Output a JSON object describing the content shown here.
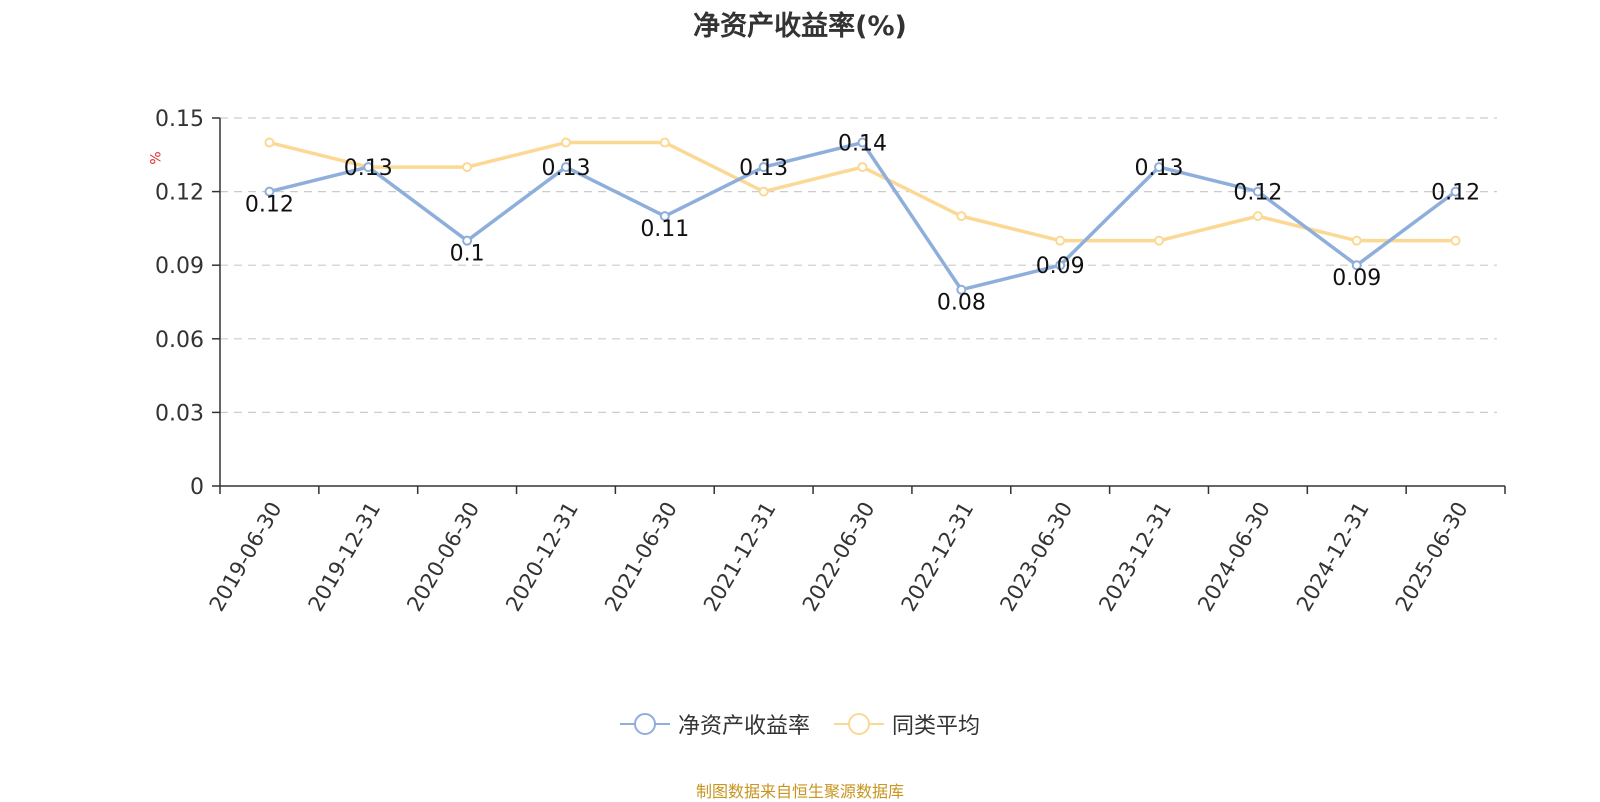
{
  "chart_data": {
    "type": "line",
    "title": "净资产收益率(%)",
    "ylabel": "%",
    "ylim": [
      0,
      0.15
    ],
    "yticks": [
      "0",
      "0.03",
      "0.06",
      "0.09",
      "0.12",
      "0.15"
    ],
    "grid": true,
    "legend_position": "bottom",
    "categories": [
      "2019-06-30",
      "2019-12-31",
      "2020-06-30",
      "2020-12-31",
      "2021-06-30",
      "2021-12-31",
      "2022-06-30",
      "2022-12-31",
      "2023-06-30",
      "2023-12-31",
      "2024-06-30",
      "2024-12-31",
      "2025-06-30"
    ],
    "series": [
      {
        "name": "净资产收益率",
        "color": "#8eaedb",
        "values": [
          0.12,
          0.13,
          0.1,
          0.13,
          0.11,
          0.13,
          0.14,
          0.08,
          0.09,
          0.13,
          0.12,
          0.09,
          0.12
        ],
        "labels": [
          "0.12",
          "0.13",
          "0.1",
          "0.13",
          "0.11",
          "0.13",
          "0.14",
          "0.08",
          "0.09",
          "0.13",
          "0.12",
          "0.09",
          "0.12"
        ]
      },
      {
        "name": "同类平均",
        "color": "#fbd994",
        "values": [
          0.14,
          0.13,
          0.13,
          0.14,
          0.14,
          0.12,
          0.13,
          0.11,
          0.1,
          0.1,
          0.11,
          0.1,
          0.1
        ]
      }
    ]
  },
  "footer": "制图数据来自恒生聚源数据库"
}
